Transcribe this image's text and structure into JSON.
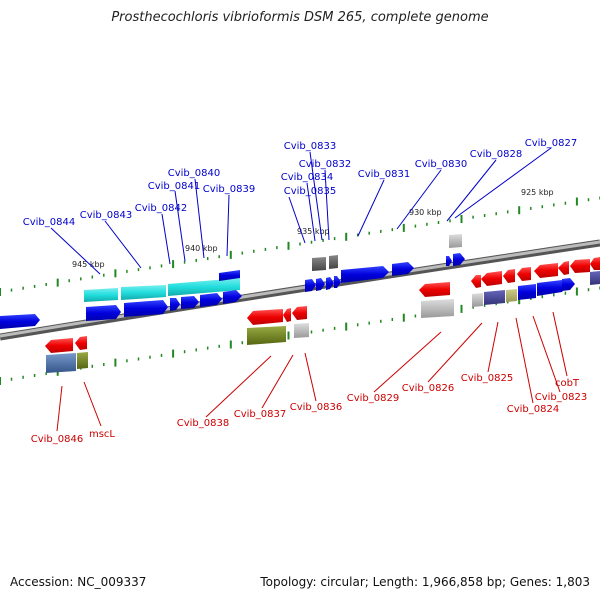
{
  "title": "Prosthecochloris vibrioformis DSM 265, complete genome",
  "footer": {
    "accession": "Accession: NC_009337",
    "summary": "Topology: circular; Length: 1,966,858 bp; Genes: 1,803"
  },
  "colors": {
    "backbone": "#888888",
    "tick": "#228822",
    "forward_gene": "#0000dd",
    "reverse_gene": "#ee0000",
    "cyan_feature": "#33dddd",
    "olive_feature": "#778822",
    "gray_feature": "#aaaaaa",
    "slate_feature": "#5577aa",
    "forward_label": "#0000cc",
    "reverse_label": "#cc0000"
  },
  "scale_labels": [
    "945 kbp",
    "940 kbp",
    "935 kbp",
    "930 kbp",
    "925 kbp"
  ],
  "forward_labels": [
    "Cvib_0844",
    "Cvib_0843",
    "Cvib_0842",
    "Cvib_0841",
    "Cvib_0840",
    "Cvib_0839",
    "Cvib_0835",
    "Cvib_0834",
    "Cvib_0833",
    "Cvib_0832",
    "Cvib_0831",
    "Cvib_0830",
    "Cvib_0828",
    "Cvib_0827"
  ],
  "reverse_labels": [
    "Cvib_0846",
    "mscL",
    "Cvib_0838",
    "Cvib_0837",
    "Cvib_0836",
    "Cvib_0829",
    "Cvib_0826",
    "Cvib_0825",
    "Cvib_0824",
    "Cvib_0823",
    "cobT"
  ]
}
